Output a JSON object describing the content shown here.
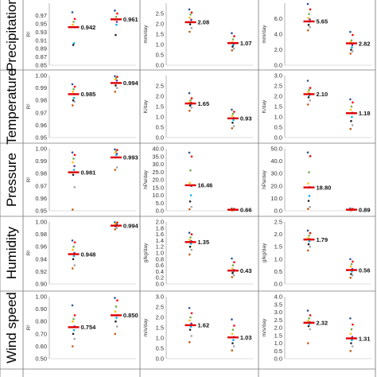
{
  "point_colors": [
    "#2f5597",
    "#ff0000",
    "#70ad47",
    "#ffc000",
    "#7030a0",
    "#00b0f0",
    "#222222",
    "#a5a5a5",
    "#c55a11"
  ],
  "mean_color": "#e00000",
  "row_labels": [
    "Precipitation",
    "Temperature",
    "Pressure",
    "Humidity",
    "Wind speed"
  ],
  "chart_data": [
    {
      "type": "scatter",
      "row": 0,
      "col": 0,
      "ylabel": "R²",
      "ylim": [
        0.85,
        1.0
      ],
      "yticks": [
        "0.85",
        "0.87",
        "0.89",
        "0.91",
        "0.93",
        "0.95",
        "0.97"
      ],
      "tick_values": [
        0.85,
        0.87,
        0.89,
        0.91,
        0.93,
        0.95,
        0.97
      ],
      "series": [
        {
          "values": [
            0.978,
            0.962,
            0.955,
            0.948,
            0.942,
            0.903,
            0.899
          ],
          "mean": 0.942,
          "label": "0.942"
        },
        {
          "values": [
            0.982,
            0.975,
            0.967,
            0.96,
            0.955,
            0.948,
            0.923
          ],
          "mean": 0.961,
          "label": "0.961"
        }
      ]
    },
    {
      "type": "scatter",
      "row": 0,
      "col": 1,
      "ylabel": "mm/day",
      "ylim": [
        0.0,
        3.0
      ],
      "yticks": [
        "0.0",
        "0.5",
        "1.0",
        "1.5",
        "2.0",
        "2.5"
      ],
      "tick_values": [
        0,
        0.5,
        1.0,
        1.5,
        2.0,
        2.5
      ],
      "series": [
        {
          "values": [
            2.7,
            2.55,
            2.45,
            2.3,
            2.2,
            2.1,
            1.98,
            1.8,
            1.62
          ],
          "mean": 2.08,
          "label": "2.08"
        },
        {
          "values": [
            1.55,
            1.4,
            1.25,
            1.12,
            1.05,
            0.98,
            0.9,
            0.8,
            0.72
          ],
          "mean": 1.07,
          "label": "1.07"
        }
      ]
    },
    {
      "type": "scatter",
      "row": 0,
      "col": 2,
      "ylabel": "mm/day",
      "ylim": [
        0.0,
        8.0
      ],
      "yticks": [
        "0.0",
        "2.0",
        "4.0",
        "6.0"
      ],
      "tick_values": [
        0,
        2,
        4,
        6
      ],
      "series": [
        {
          "values": [
            7.9,
            7.2,
            6.6,
            6.1,
            5.9,
            5.6,
            5.2,
            4.9,
            4.5
          ],
          "mean": 5.65,
          "label": "5.65"
        },
        {
          "values": [
            4.3,
            3.9,
            3.2,
            3.0,
            2.6,
            2.3,
            2.0,
            1.8,
            1.5
          ],
          "mean": 2.82,
          "label": "2.82"
        }
      ]
    },
    {
      "type": "scatter",
      "row": 1,
      "col": 0,
      "ylabel": "R²",
      "ylim": [
        0.95,
        1.0
      ],
      "yticks": [
        "0.95",
        "0.96",
        "0.97",
        "0.98",
        "0.99",
        "1.00"
      ],
      "tick_values": [
        0.95,
        0.96,
        0.97,
        0.98,
        0.99,
        1.0
      ],
      "series": [
        {
          "values": [
            0.993,
            0.991,
            0.989,
            0.987,
            0.985,
            0.982,
            0.98,
            0.979,
            0.976
          ],
          "mean": 0.985,
          "label": "0.985"
        },
        {
          "values": [
            0.9995,
            0.999,
            0.998,
            0.997,
            0.996,
            0.994,
            0.992,
            0.99,
            0.987
          ],
          "mean": 0.994,
          "label": "0.994"
        }
      ]
    },
    {
      "type": "scatter",
      "row": 1,
      "col": 1,
      "ylabel": "K/day",
      "ylim": [
        0.0,
        3.0
      ],
      "yticks": [
        "0.0",
        "0.5",
        "1.0",
        "1.5",
        "2.0",
        "2.5"
      ],
      "tick_values": [
        0,
        0.5,
        1.0,
        1.5,
        2.0,
        2.5
      ],
      "series": [
        {
          "values": [
            2.15,
            1.9,
            1.8,
            1.72,
            1.68,
            1.6,
            1.55,
            1.45,
            1.3
          ],
          "mean": 1.65,
          "label": "1.65"
        },
        {
          "values": [
            1.35,
            1.25,
            1.15,
            1.05,
            0.95,
            0.85,
            0.72,
            0.55,
            0.45
          ],
          "mean": 0.93,
          "label": "0.93"
        }
      ]
    },
    {
      "type": "scatter",
      "row": 1,
      "col": 2,
      "ylabel": "K/day",
      "ylim": [
        0.0,
        3.0
      ],
      "yticks": [
        "0.0",
        "0.5",
        "1.0",
        "1.5",
        "2.0",
        "2.5",
        "3.0"
      ],
      "tick_values": [
        0,
        0.5,
        1.0,
        1.5,
        2.0,
        2.5,
        3.0
      ],
      "series": [
        {
          "values": [
            2.75,
            2.4,
            2.3,
            2.2,
            2.12,
            2.05,
            1.95,
            1.8,
            1.6
          ],
          "mean": 2.1,
          "label": "2.10"
        },
        {
          "values": [
            1.85,
            1.7,
            1.5,
            1.35,
            1.2,
            1.0,
            0.8,
            0.6,
            0.42
          ],
          "mean": 1.18,
          "label": "1.18"
        }
      ]
    },
    {
      "type": "scatter",
      "row": 2,
      "col": 0,
      "ylabel": "R²",
      "ylim": [
        0.95,
        1.0
      ],
      "yticks": [
        "0.95",
        "0.96",
        "0.97",
        "0.98",
        "0.99",
        "1.00"
      ],
      "tick_values": [
        0.95,
        0.96,
        0.97,
        0.98,
        0.99,
        1.0
      ],
      "series": [
        {
          "values": [
            0.997,
            0.995,
            0.992,
            0.989,
            0.986,
            0.983,
            0.979,
            0.969,
            0.951
          ],
          "mean": 0.981,
          "label": "0.981"
        },
        {
          "values": [
            0.9995,
            0.999,
            0.998,
            0.997,
            0.996,
            0.995,
            0.993,
            0.985,
            0.983
          ],
          "mean": 0.993,
          "label": "0.993"
        }
      ]
    },
    {
      "type": "scatter",
      "row": 2,
      "col": 1,
      "ylabel": "hPa/day",
      "ylim": [
        0.0,
        40.0
      ],
      "yticks": [
        "0.0",
        "5.0",
        "10.0",
        "15.0",
        "20.0",
        "25.0",
        "30.0",
        "35.0",
        "40.0"
      ],
      "tick_values": [
        0,
        5,
        10,
        15,
        20,
        25,
        30,
        35,
        40
      ],
      "series": [
        {
          "values": [
            37.5,
            35.0,
            26.0,
            18.0,
            16.0,
            10.0,
            6.0,
            2.5,
            1.0
          ],
          "mean": 16.46,
          "label": "16.46"
        },
        {
          "values": [
            1.4,
            1.2,
            1.0,
            0.9,
            0.7,
            0.6,
            0.5,
            0.4,
            0.3
          ],
          "mean": 0.66,
          "label": "0.66"
        }
      ]
    },
    {
      "type": "scatter",
      "row": 2,
      "col": 2,
      "ylabel": "hPa/day",
      "ylim": [
        0.0,
        50.0
      ],
      "yticks": [
        "0.0",
        "10.0",
        "20.0",
        "30.0",
        "40.0",
        "50.0"
      ],
      "tick_values": [
        0,
        10,
        20,
        30,
        40,
        50
      ],
      "series": [
        {
          "values": [
            47.0,
            44.0,
            31.0,
            22.0,
            19.0,
            12.0,
            8.0,
            3.0,
            1.5
          ],
          "mean": 18.8,
          "label": "18.80"
        },
        {
          "values": [
            1.8,
            1.5,
            1.2,
            1.0,
            0.9,
            0.8,
            0.6,
            0.5,
            0.4
          ],
          "mean": 0.89,
          "label": "0.89"
        }
      ]
    },
    {
      "type": "scatter",
      "row": 3,
      "col": 0,
      "ylabel": "R²",
      "ylim": [
        0.9,
        1.0
      ],
      "yticks": [
        "0.90",
        "0.92",
        "0.94",
        "0.96",
        "0.98",
        "1.00"
      ],
      "tick_values": [
        0.9,
        0.92,
        0.94,
        0.96,
        0.98,
        1.0
      ],
      "series": [
        {
          "values": [
            0.97,
            0.967,
            0.96,
            0.955,
            0.95,
            0.945,
            0.94,
            0.93,
            0.925
          ],
          "mean": 0.948,
          "label": "0.948"
        },
        {
          "values": [
            0.9995,
            0.999,
            0.998,
            0.997,
            0.996,
            0.995,
            0.993,
            0.99,
            0.988
          ],
          "mean": 0.994,
          "label": "0.994"
        }
      ]
    },
    {
      "type": "scatter",
      "row": 3,
      "col": 1,
      "ylabel": "g/kg/day",
      "ylim": [
        0.0,
        2.0
      ],
      "yticks": [
        "0.0",
        "0.2",
        "0.4",
        "0.6",
        "0.8",
        "1.0",
        "1.2",
        "1.4",
        "1.6",
        "1.8",
        "2.0"
      ],
      "tick_values": [
        0,
        0.2,
        0.4,
        0.6,
        0.8,
        1.0,
        1.2,
        1.4,
        1.6,
        1.8,
        2.0
      ],
      "series": [
        {
          "values": [
            1.65,
            1.6,
            1.5,
            1.42,
            1.38,
            1.3,
            1.2,
            1.1,
            0.95
          ],
          "mean": 1.35,
          "label": "1.35"
        },
        {
          "values": [
            0.82,
            0.7,
            0.6,
            0.5,
            0.45,
            0.4,
            0.35,
            0.28,
            0.22
          ],
          "mean": 0.43,
          "label": "0.43"
        }
      ]
    },
    {
      "type": "scatter",
      "row": 3,
      "col": 2,
      "ylabel": "g/kg/day",
      "ylim": [
        0.0,
        2.5
      ],
      "yticks": [
        "0.0",
        "0.5",
        "1.0",
        "1.5",
        "2.0",
        "2.5"
      ],
      "tick_values": [
        0,
        0.5,
        1.0,
        1.5,
        2.0,
        2.5
      ],
      "series": [
        {
          "values": [
            2.15,
            2.05,
            1.95,
            1.85,
            1.8,
            1.72,
            1.6,
            1.5,
            1.35
          ],
          "mean": 1.79,
          "label": "1.79"
        },
        {
          "values": [
            1.0,
            0.9,
            0.8,
            0.7,
            0.6,
            0.5,
            0.4,
            0.35,
            0.25
          ],
          "mean": 0.56,
          "label": "0.56"
        }
      ]
    },
    {
      "type": "scatter",
      "row": 4,
      "col": 0,
      "ylabel": "R²",
      "ylim": [
        0.5,
        1.0
      ],
      "yticks": [
        "0.50",
        "0.60",
        "0.70",
        "0.80",
        "0.90",
        "1.00"
      ],
      "tick_values": [
        0.5,
        0.6,
        0.7,
        0.8,
        0.9,
        1.0
      ],
      "series": [
        {
          "values": [
            0.93,
            0.85,
            0.82,
            0.8,
            0.76,
            0.73,
            0.7,
            0.66,
            0.6
          ],
          "mean": 0.754,
          "label": "0.754"
        },
        {
          "values": [
            0.99,
            0.97,
            0.92,
            0.88,
            0.85,
            0.83,
            0.8,
            0.76,
            0.7
          ],
          "mean": 0.85,
          "label": "0.850"
        }
      ]
    },
    {
      "type": "scatter",
      "row": 4,
      "col": 1,
      "ylabel": "m/s/day",
      "ylim": [
        0.0,
        3.0
      ],
      "yticks": [
        "0.0",
        "0.5",
        "1.0",
        "1.5",
        "2.0",
        "2.5",
        "3.0"
      ],
      "tick_values": [
        0,
        0.5,
        1.0,
        1.5,
        2.0,
        2.5,
        3.0
      ],
      "series": [
        {
          "values": [
            2.45,
            2.2,
            2.0,
            1.85,
            1.7,
            1.55,
            1.4,
            1.1,
            0.8
          ],
          "mean": 1.62,
          "label": "1.62"
        },
        {
          "values": [
            1.9,
            1.6,
            1.4,
            1.2,
            1.05,
            0.9,
            0.75,
            0.6,
            0.4
          ],
          "mean": 1.03,
          "label": "1.03"
        }
      ]
    },
    {
      "type": "scatter",
      "row": 4,
      "col": 2,
      "ylabel": "m/s/day",
      "ylim": [
        0.0,
        4.0
      ],
      "yticks": [
        "0.0",
        "0.5",
        "1.0",
        "1.5",
        "2.0",
        "2.5",
        "3.0",
        "3.5",
        "4.0"
      ],
      "tick_values": [
        0,
        0.5,
        1.0,
        1.5,
        2.0,
        2.5,
        3.0,
        3.5,
        4.0
      ],
      "series": [
        {
          "values": [
            3.1,
            2.8,
            2.6,
            2.45,
            2.35,
            2.25,
            2.1,
            1.9,
            1.0
          ],
          "mean": 2.32,
          "label": "2.32"
        },
        {
          "values": [
            2.6,
            2.2,
            1.9,
            1.6,
            1.4,
            1.2,
            1.0,
            0.8,
            0.5
          ],
          "mean": 1.31,
          "label": "1.31"
        }
      ]
    }
  ]
}
